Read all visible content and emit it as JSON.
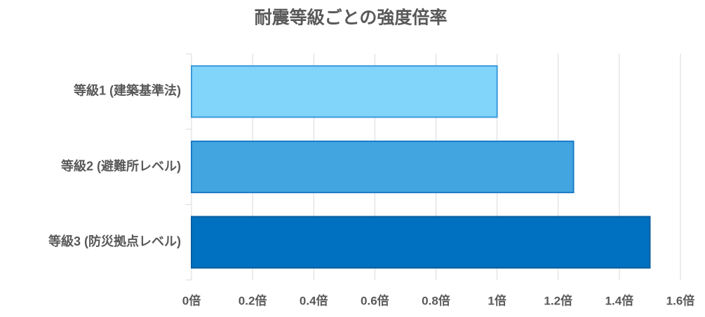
{
  "chart_data": {
    "type": "bar",
    "orientation": "horizontal",
    "title": "耐震等級ごとの強度倍率",
    "categories": [
      "等級1 (建築基準法)",
      "等級2 (避難所レベル)",
      "等級3 (防災拠点レベル)"
    ],
    "values": [
      1,
      1.25,
      1.5
    ],
    "colors": [
      "#81d4fa",
      "#42a5e0",
      "#0070c0"
    ],
    "edgecolors": [
      "#3a9ad9",
      "#1a7bc8",
      "#0a5fa0"
    ],
    "xlim": [
      0,
      1.6
    ],
    "xticks": [
      {
        "value": 0,
        "label": "0倍"
      },
      {
        "value": 0.2,
        "label": "0.2倍"
      },
      {
        "value": 0.4,
        "label": "0.4倍"
      },
      {
        "value": 0.6,
        "label": "0.6倍"
      },
      {
        "value": 0.8,
        "label": "0.8倍"
      },
      {
        "value": 1,
        "label": "1倍"
      },
      {
        "value": 1.2,
        "label": "1.2倍"
      },
      {
        "value": 1.4,
        "label": "1.4倍"
      },
      {
        "value": 1.6,
        "label": "1.6倍"
      }
    ],
    "grid": true
  }
}
